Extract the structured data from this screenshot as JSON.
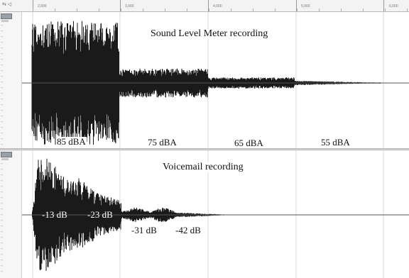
{
  "ruler": {
    "controls_label": "⇆ ◁",
    "tick_labels": [
      "2,000",
      "3,000",
      "4,000",
      "5,000",
      "6,000"
    ]
  },
  "top_track": {
    "title": "Sound Level Meter recording",
    "segments": [
      {
        "label": "85 dBA",
        "amp": 0.95
      },
      {
        "label": "75 dBA",
        "amp": 0.22
      },
      {
        "label": "65 dBA",
        "amp": 0.085
      },
      {
        "label": "55 dBA",
        "amp": 0.035
      }
    ]
  },
  "bottom_track": {
    "title": "Voicemail recording",
    "labels": [
      "-13 dB",
      "-23 dB",
      "-31 dB",
      "-42 dB"
    ]
  },
  "colors": {
    "waveform": "#1a1a1a",
    "centerline": "#555555",
    "grid": "#d8d8d8",
    "gutter_bg": "#f6f6f6",
    "separator": "#d9d9d9"
  },
  "icons": [
    "track-menu-icon",
    "loop-icon",
    "play-icon"
  ]
}
